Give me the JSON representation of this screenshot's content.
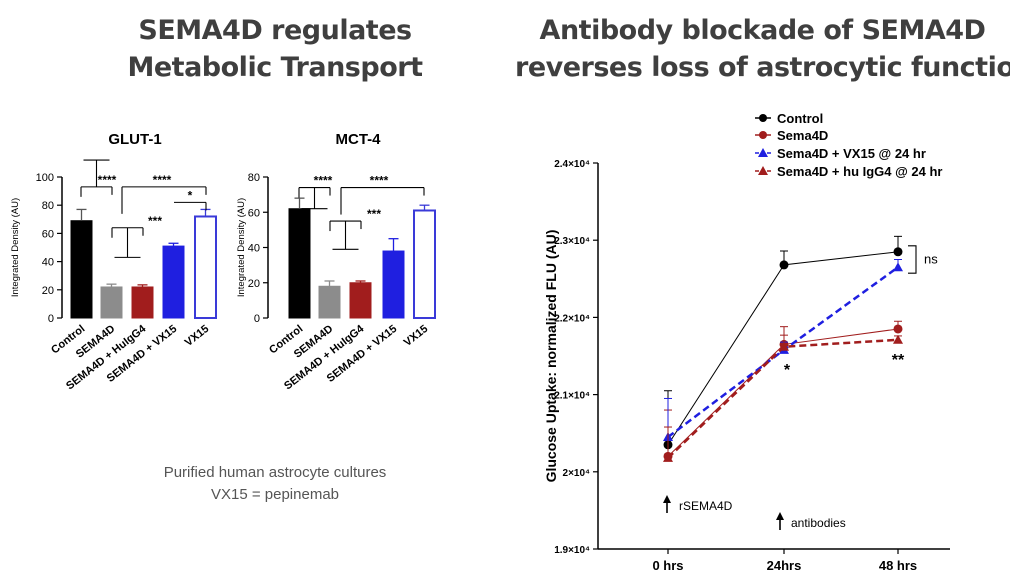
{
  "headings": {
    "left": [
      "SEMA4D regulates",
      "Metabolic Transport"
    ],
    "right": [
      "Antibody blockade of SEMA4D",
      "reverses loss of astrocytic function"
    ]
  },
  "caption": [
    "Purified human astrocyte cultures",
    "VX15 = pepinemab"
  ],
  "colors": {
    "black": "#000000",
    "gray": "#8c8c8c",
    "darkred": "#a11d1d",
    "blue": "#1f1fe0",
    "vx15": "#3a3ad8"
  },
  "chart_data": [
    {
      "type": "bar",
      "title": "GLUT-1",
      "ylabel": "Integrated Density (AU)",
      "ylim": [
        0,
        100
      ],
      "yticks": [
        0,
        20,
        40,
        60,
        80,
        100
      ],
      "categories": [
        "Control",
        "SEMA4D",
        "SEMA4D + HuIgG4",
        "SEMA4D + VX15",
        "VX15"
      ],
      "values": [
        69,
        22,
        22,
        51,
        72
      ],
      "errors": [
        8,
        2,
        1.5,
        2,
        5
      ],
      "fills": [
        "#000000",
        "#8c8c8c",
        "#a11d1d",
        "#1f1fe0",
        "#ffffff"
      ],
      "significance": [
        {
          "label": "****",
          "y": 93
        },
        {
          "label": "****",
          "y": 93
        },
        {
          "label": "*",
          "y": 82
        },
        {
          "label": "***",
          "y": 64
        }
      ]
    },
    {
      "type": "bar",
      "title": "MCT-4",
      "ylabel": "Integrated Density (AU)",
      "ylim": [
        0,
        80
      ],
      "yticks": [
        0,
        20,
        40,
        60,
        80
      ],
      "categories": [
        "Control",
        "SEMA4D",
        "SEMA4D + HuIgG4",
        "SEMA4D + VX15",
        "VX15"
      ],
      "values": [
        62,
        18,
        20,
        38,
        61
      ],
      "errors": [
        6,
        3,
        1,
        7,
        3
      ],
      "fills": [
        "#000000",
        "#8c8c8c",
        "#a11d1d",
        "#1f1fe0",
        "#ffffff"
      ],
      "significance": [
        {
          "label": "****",
          "y": 74
        },
        {
          "label": "****",
          "y": 74
        },
        {
          "label": "***",
          "y": 55
        }
      ]
    },
    {
      "type": "line",
      "ylabel": "Glucose  Uptake: normalized FLU (AU)",
      "x": [
        "0 hrs",
        "24hrs",
        "48 hrs"
      ],
      "ylim": [
        19000,
        24000
      ],
      "ytick_labels": [
        "1.9×10⁴",
        "2×10⁴",
        "2.1×10⁴",
        "2.2×10⁴",
        "2.3×10⁴",
        "2.4×10⁴"
      ],
      "yticks": [
        19000,
        20000,
        21000,
        22000,
        23000,
        24000
      ],
      "series": [
        {
          "name": "Control",
          "values": [
            20350,
            22680,
            22850
          ],
          "errors": [
            700,
            180,
            200
          ],
          "color": "#000000",
          "marker": "circle",
          "dashed": false
        },
        {
          "name": "Sema4D",
          "values": [
            20200,
            21650,
            21850
          ],
          "errors": [
            600,
            230,
            100
          ],
          "color": "#a11d1d",
          "marker": "circle",
          "dashed": false
        },
        {
          "name": "Sema4D + VX15 @ 24 hr",
          "values": [
            20450,
            21580,
            22650
          ],
          "errors": [
            500,
            100,
            100
          ],
          "color": "#1f1fe0",
          "marker": "triangle",
          "dashed": true
        },
        {
          "name": "Sema4D + hu IgG4 @ 24 hr",
          "values": [
            20180,
            21620,
            21710
          ],
          "errors": [
            400,
            150,
            50
          ],
          "color": "#a11d1d",
          "marker": "triangle",
          "dashed": true
        }
      ],
      "annotations": {
        "ns": "ns",
        "star24": "*",
        "star48": "**",
        "rsema": "rSEMA4D",
        "antibodies": "antibodies"
      }
    }
  ]
}
